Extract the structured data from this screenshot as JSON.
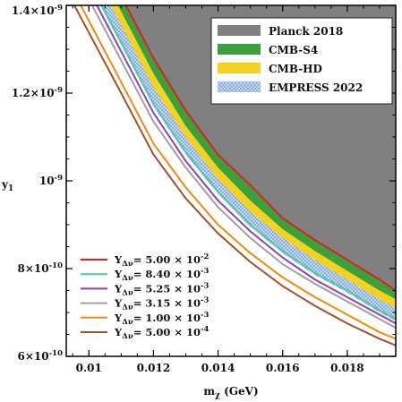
{
  "chart_data": {
    "type": "area",
    "xlabel": "m_χ (GeV)",
    "ylabel": "y₁",
    "xlim": [
      0.0093,
      0.0195
    ],
    "ylim": [
      6e-10,
      1.4e-09
    ],
    "x_ticks": [
      {
        "value": 0.01,
        "label": "0.01"
      },
      {
        "value": 0.012,
        "label": "0.012"
      },
      {
        "value": 0.014,
        "label": "0.014"
      },
      {
        "value": 0.016,
        "label": "0.016"
      },
      {
        "value": 0.018,
        "label": "0.018"
      }
    ],
    "y_ticks": [
      {
        "value": 6e-10,
        "label": "6×10⁻¹⁰"
      },
      {
        "value": 8e-10,
        "label": "8×10⁻¹⁰"
      },
      {
        "value": 1e-09,
        "label": "10⁻⁹"
      },
      {
        "value": 1.2e-09,
        "label": "1.2×10⁻⁹"
      },
      {
        "value": 1.4e-09,
        "label": "1.4×10⁻⁹"
      }
    ],
    "bands": [
      {
        "name": "Planck 2018",
        "color": "#808080",
        "pattern": "solid",
        "lower": [
          [
            0.01115,
            1.4e-09
          ],
          [
            0.012,
            1.28e-09
          ],
          [
            0.013,
            1.16e-09
          ],
          [
            0.014,
            1.06e-09
          ],
          [
            0.015,
            9.9e-10
          ],
          [
            0.016,
            9.15e-10
          ],
          [
            0.017,
            8.65e-10
          ],
          [
            0.018,
            8.2e-10
          ],
          [
            0.019,
            7.75e-10
          ],
          [
            0.0195,
            7.5e-10
          ]
        ]
      },
      {
        "name": "CMB-S4",
        "color": "#3ca03c",
        "pattern": "solid",
        "lower": [
          [
            0.0109,
            1.4e-09
          ],
          [
            0.012,
            1.245e-09
          ],
          [
            0.013,
            1.125e-09
          ],
          [
            0.014,
            1.03e-09
          ],
          [
            0.015,
            9.55e-10
          ],
          [
            0.016,
            8.9e-10
          ],
          [
            0.017,
            8.4e-10
          ],
          [
            0.018,
            7.95e-10
          ],
          [
            0.019,
            7.5e-10
          ],
          [
            0.0195,
            7.3e-10
          ]
        ]
      },
      {
        "name": "CMB-HD",
        "color": "#f5d21e",
        "pattern": "solid",
        "lower": [
          [
            0.0107,
            1.4e-09
          ],
          [
            0.012,
            1.215e-09
          ],
          [
            0.013,
            1.1e-09
          ],
          [
            0.014,
            1.005e-09
          ],
          [
            0.015,
            9.3e-10
          ],
          [
            0.016,
            8.7e-10
          ],
          [
            0.017,
            8.2e-10
          ],
          [
            0.018,
            7.75e-10
          ],
          [
            0.019,
            7.3e-10
          ],
          [
            0.0195,
            7.1e-10
          ]
        ]
      },
      {
        "name": "EMPRESS 2022",
        "color": "#8ab0e0",
        "pattern": "dots",
        "lower": [
          [
            0.01035,
            1.4e-09
          ],
          [
            0.012,
            1.17e-09
          ],
          [
            0.013,
            1.06e-09
          ],
          [
            0.014,
            9.7e-10
          ],
          [
            0.015,
            8.95e-10
          ],
          [
            0.016,
            8.35e-10
          ],
          [
            0.017,
            7.85e-10
          ],
          [
            0.018,
            7.45e-10
          ],
          [
            0.019,
            7e-10
          ],
          [
            0.0195,
            6.8e-10
          ]
        ]
      }
    ],
    "series": [
      {
        "name": "Y_Δν= 5.00 × 10⁻²",
        "legend_value": "5.00 × 10",
        "legend_exp": "-2",
        "color": "#e02020",
        "points": [
          [
            0.01115,
            1.4e-09
          ],
          [
            0.012,
            1.28e-09
          ],
          [
            0.013,
            1.16e-09
          ],
          [
            0.014,
            1.06e-09
          ],
          [
            0.015,
            9.9e-10
          ],
          [
            0.016,
            9.15e-10
          ],
          [
            0.017,
            8.65e-10
          ],
          [
            0.018,
            8.2e-10
          ],
          [
            0.019,
            7.75e-10
          ],
          [
            0.0195,
            7.5e-10
          ]
        ]
      },
      {
        "name": "Y_Δν= 8.40 × 10⁻³",
        "legend_value": "8.40 × 10",
        "legend_exp": "-3",
        "color": "#4ec9a8",
        "points": [
          [
            0.0104,
            1.4e-09
          ],
          [
            0.012,
            1.175e-09
          ],
          [
            0.013,
            1.065e-09
          ],
          [
            0.014,
            9.75e-10
          ],
          [
            0.015,
            9e-10
          ],
          [
            0.016,
            8.4e-10
          ],
          [
            0.017,
            7.9e-10
          ],
          [
            0.018,
            7.5e-10
          ],
          [
            0.019,
            7.05e-10
          ],
          [
            0.0195,
            6.85e-10
          ]
        ]
      },
      {
        "name": "Y_Δν= 5.25 × 10⁻³",
        "legend_value": "5.25 × 10",
        "legend_exp": "-3",
        "color": "#9040b0",
        "points": [
          [
            0.01025,
            1.4e-09
          ],
          [
            0.012,
            1.155e-09
          ],
          [
            0.013,
            1.045e-09
          ],
          [
            0.014,
            9.55e-10
          ],
          [
            0.015,
            8.85e-10
          ],
          [
            0.016,
            8.25e-10
          ],
          [
            0.017,
            7.75e-10
          ],
          [
            0.018,
            7.35e-10
          ],
          [
            0.019,
            6.95e-10
          ],
          [
            0.0195,
            6.75e-10
          ]
        ]
      },
      {
        "name": "Y_Δν= 3.15 × 10⁻³",
        "legend_value": "3.15 × 10",
        "legend_exp": "-3",
        "color": "#a0a0a0",
        "points": [
          [
            0.0101,
            1.4e-09
          ],
          [
            0.012,
            1.135e-09
          ],
          [
            0.013,
            1.03e-09
          ],
          [
            0.014,
            9.4e-10
          ],
          [
            0.015,
            8.7e-10
          ],
          [
            0.016,
            8.1e-10
          ],
          [
            0.017,
            7.65e-10
          ],
          [
            0.018,
            7.25e-10
          ],
          [
            0.019,
            6.85e-10
          ],
          [
            0.0195,
            6.65e-10
          ]
        ]
      },
      {
        "name": "Y_Δν= 1.00 × 10⁻³",
        "legend_value": "1.00 × 10",
        "legend_exp": "-3",
        "color": "#f08a10",
        "points": [
          [
            0.00975,
            1.4e-09
          ],
          [
            0.012,
            1.085e-09
          ],
          [
            0.013,
            9.85e-10
          ],
          [
            0.014,
            9e-10
          ],
          [
            0.015,
            8.35e-10
          ],
          [
            0.016,
            7.8e-10
          ],
          [
            0.017,
            7.35e-10
          ],
          [
            0.018,
            6.95e-10
          ],
          [
            0.019,
            6.55e-10
          ],
          [
            0.0195,
            6.4e-10
          ]
        ]
      },
      {
        "name": "Y_Δν= 5.00 × 10⁻⁴",
        "legend_value": "5.00 × 10",
        "legend_exp": "-4",
        "color": "#a0522d",
        "points": [
          [
            0.00955,
            1.4e-09
          ],
          [
            0.011,
            1.2e-09
          ],
          [
            0.012,
            1.06e-09
          ],
          [
            0.013,
            9.6e-10
          ],
          [
            0.014,
            8.8e-10
          ],
          [
            0.015,
            8.15e-10
          ],
          [
            0.016,
            7.6e-10
          ],
          [
            0.017,
            7.15e-10
          ],
          [
            0.018,
            6.75e-10
          ],
          [
            0.019,
            6.4e-10
          ],
          [
            0.0195,
            6.25e-10
          ]
        ]
      }
    ],
    "legend_lines_prefix": "Y",
    "legend_lines_sub": "Δν",
    "legend_lines_eq": "= ",
    "legend_bands_placement": "top-right",
    "legend_lines_placement": "bottom-left",
    "grid": false
  }
}
